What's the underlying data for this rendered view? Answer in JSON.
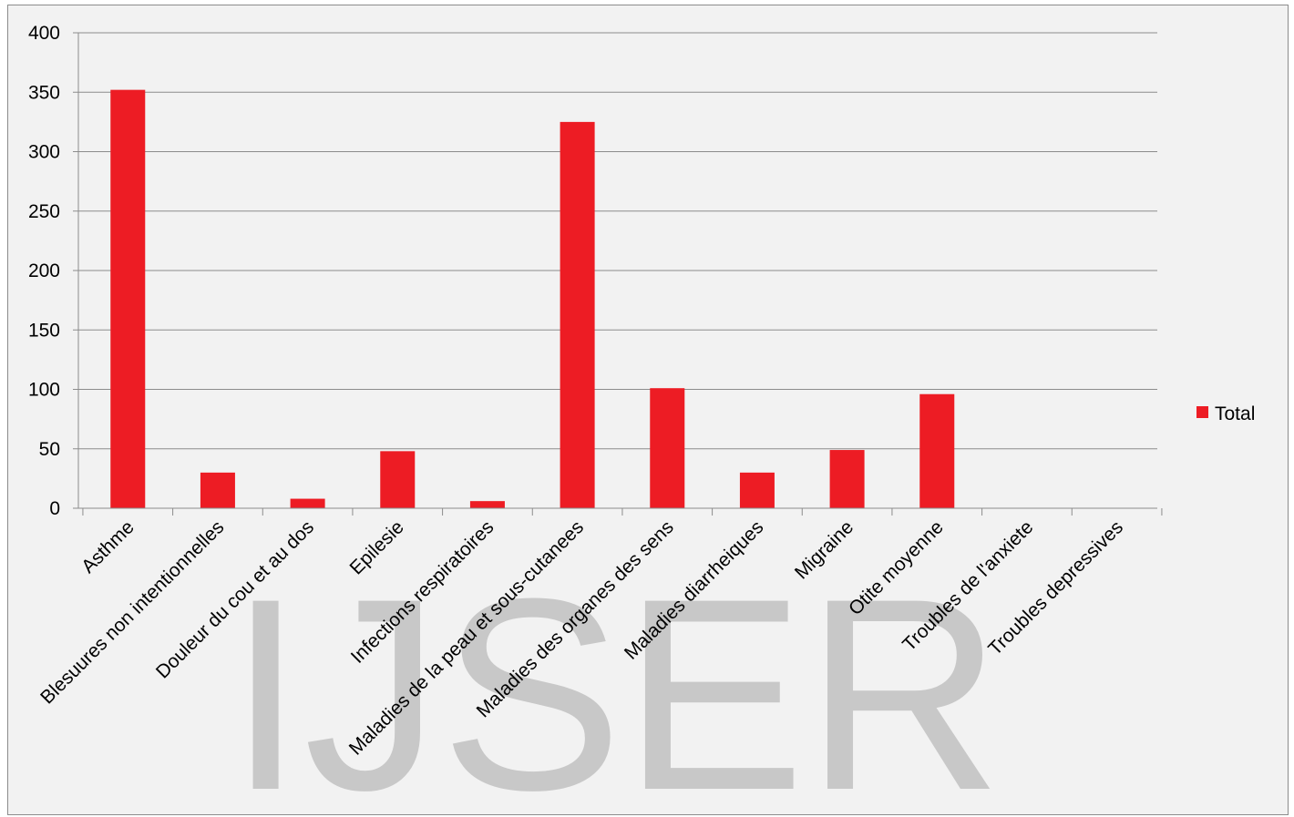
{
  "chart_data": {
    "type": "bar",
    "categories": [
      "Asthme",
      "Blesuures non intentionnelles",
      "Douleur du cou et au dos",
      "Epilesie",
      "Infections respiratoires",
      "Maladies de la peau et sous-cutanees",
      "Maladies des organes des sens",
      "Maladies diarrheiques",
      "Migraine",
      "Otite moyenne",
      "Troubles de l'anxiete",
      "Troubles depressives"
    ],
    "series": [
      {
        "name": "Total",
        "color": "#ed1c24",
        "values": [
          352,
          30,
          8,
          48,
          6,
          325,
          101,
          30,
          49,
          96,
          0,
          0
        ]
      }
    ],
    "yticks": [
      "0",
      "50",
      "100",
      "150",
      "200",
      "250",
      "300",
      "350",
      "400"
    ],
    "ylim": [
      0,
      400
    ],
    "grid": true,
    "legend_position": "right"
  },
  "watermark": "IJSER"
}
